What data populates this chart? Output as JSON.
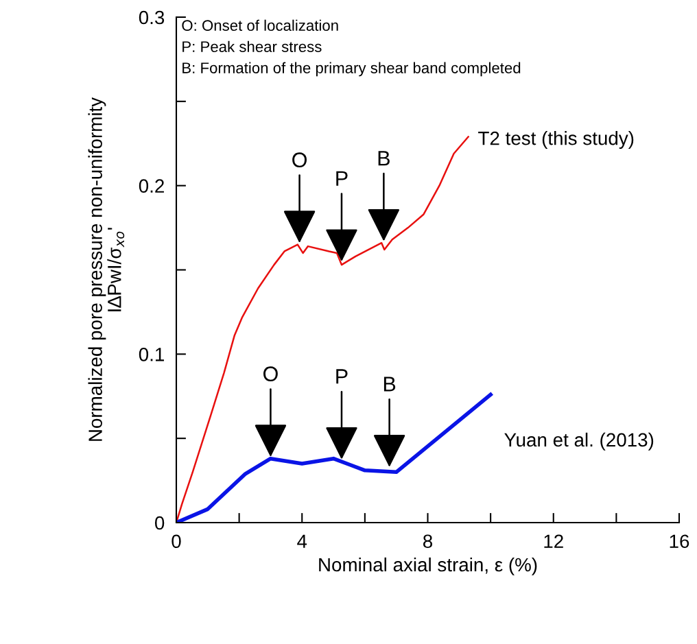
{
  "chart_data": {
    "type": "line",
    "xlabel": "Nominal axial strain, ε (%)",
    "ylabel": "Normalized pore pressure non-uniformity\nI∆PwI/σ$_{xo}$'",
    "xlim": [
      0,
      16
    ],
    "ylim": [
      0,
      0.3
    ],
    "xticks": [
      0,
      {
        "value": 2,
        "label": null
      },
      4,
      {
        "value": 6,
        "label": null
      },
      8,
      {
        "value": 10,
        "label": null
      },
      12,
      {
        "value": 14,
        "label": null
      },
      16
    ],
    "yticks": [
      0,
      {
        "value": 0.05,
        "label": null
      },
      0.1,
      {
        "value": 0.15,
        "label": null
      },
      0.2,
      {
        "value": 0.25,
        "label": null
      },
      0.3
    ],
    "grid": false,
    "legend": false,
    "marker": "none",
    "line_style": "solid",
    "series": [
      {
        "name": "T2 test (this study)",
        "color": "#e8100f",
        "x": [
          0.0,
          0.18,
          0.52,
          1.1,
          1.31,
          1.52,
          1.85,
          2.1,
          2.6,
          3.11,
          3.44,
          3.86,
          4.03,
          4.19,
          4.86,
          5.11,
          5.26,
          5.7,
          6.53,
          6.62,
          6.87,
          7.37,
          7.87,
          8.37,
          8.83,
          9.29
        ],
        "values": [
          0.0,
          0.011,
          0.03,
          0.064,
          0.0765,
          0.089,
          0.111,
          0.122,
          0.139,
          0.153,
          0.161,
          0.165,
          0.16,
          0.164,
          0.161,
          0.16,
          0.153,
          0.158,
          0.166,
          0.162,
          0.168,
          0.175,
          0.183,
          0.2,
          0.219,
          0.229
        ]
      },
      {
        "name": "Yuan et al. (2013)",
        "color": "#0a14e6",
        "x": [
          0,
          1,
          2.2,
          3,
          4,
          5,
          6,
          7,
          10
        ],
        "values": [
          0,
          0.008,
          0.029,
          0.038,
          0.035,
          0.038,
          0.031,
          0.03,
          0.076
        ]
      }
    ],
    "annotations": [
      "O: Onset of localization",
      "P: Peak shear stress",
      "B: Formation of the primary shear band completed",
      {
        "text": "O",
        "x": 3.92,
        "y": 0.166
      },
      {
        "text": "P",
        "x": 5.26,
        "y": 0.155
      },
      {
        "text": "B",
        "x": 6.6,
        "y": 0.167
      },
      {
        "text": "O",
        "x": 3.0,
        "y": 0.039
      },
      {
        "text": "P",
        "x": 5.26,
        "y": 0.0375
      },
      {
        "text": "B",
        "x": 6.78,
        "y": 0.033
      }
    ]
  }
}
